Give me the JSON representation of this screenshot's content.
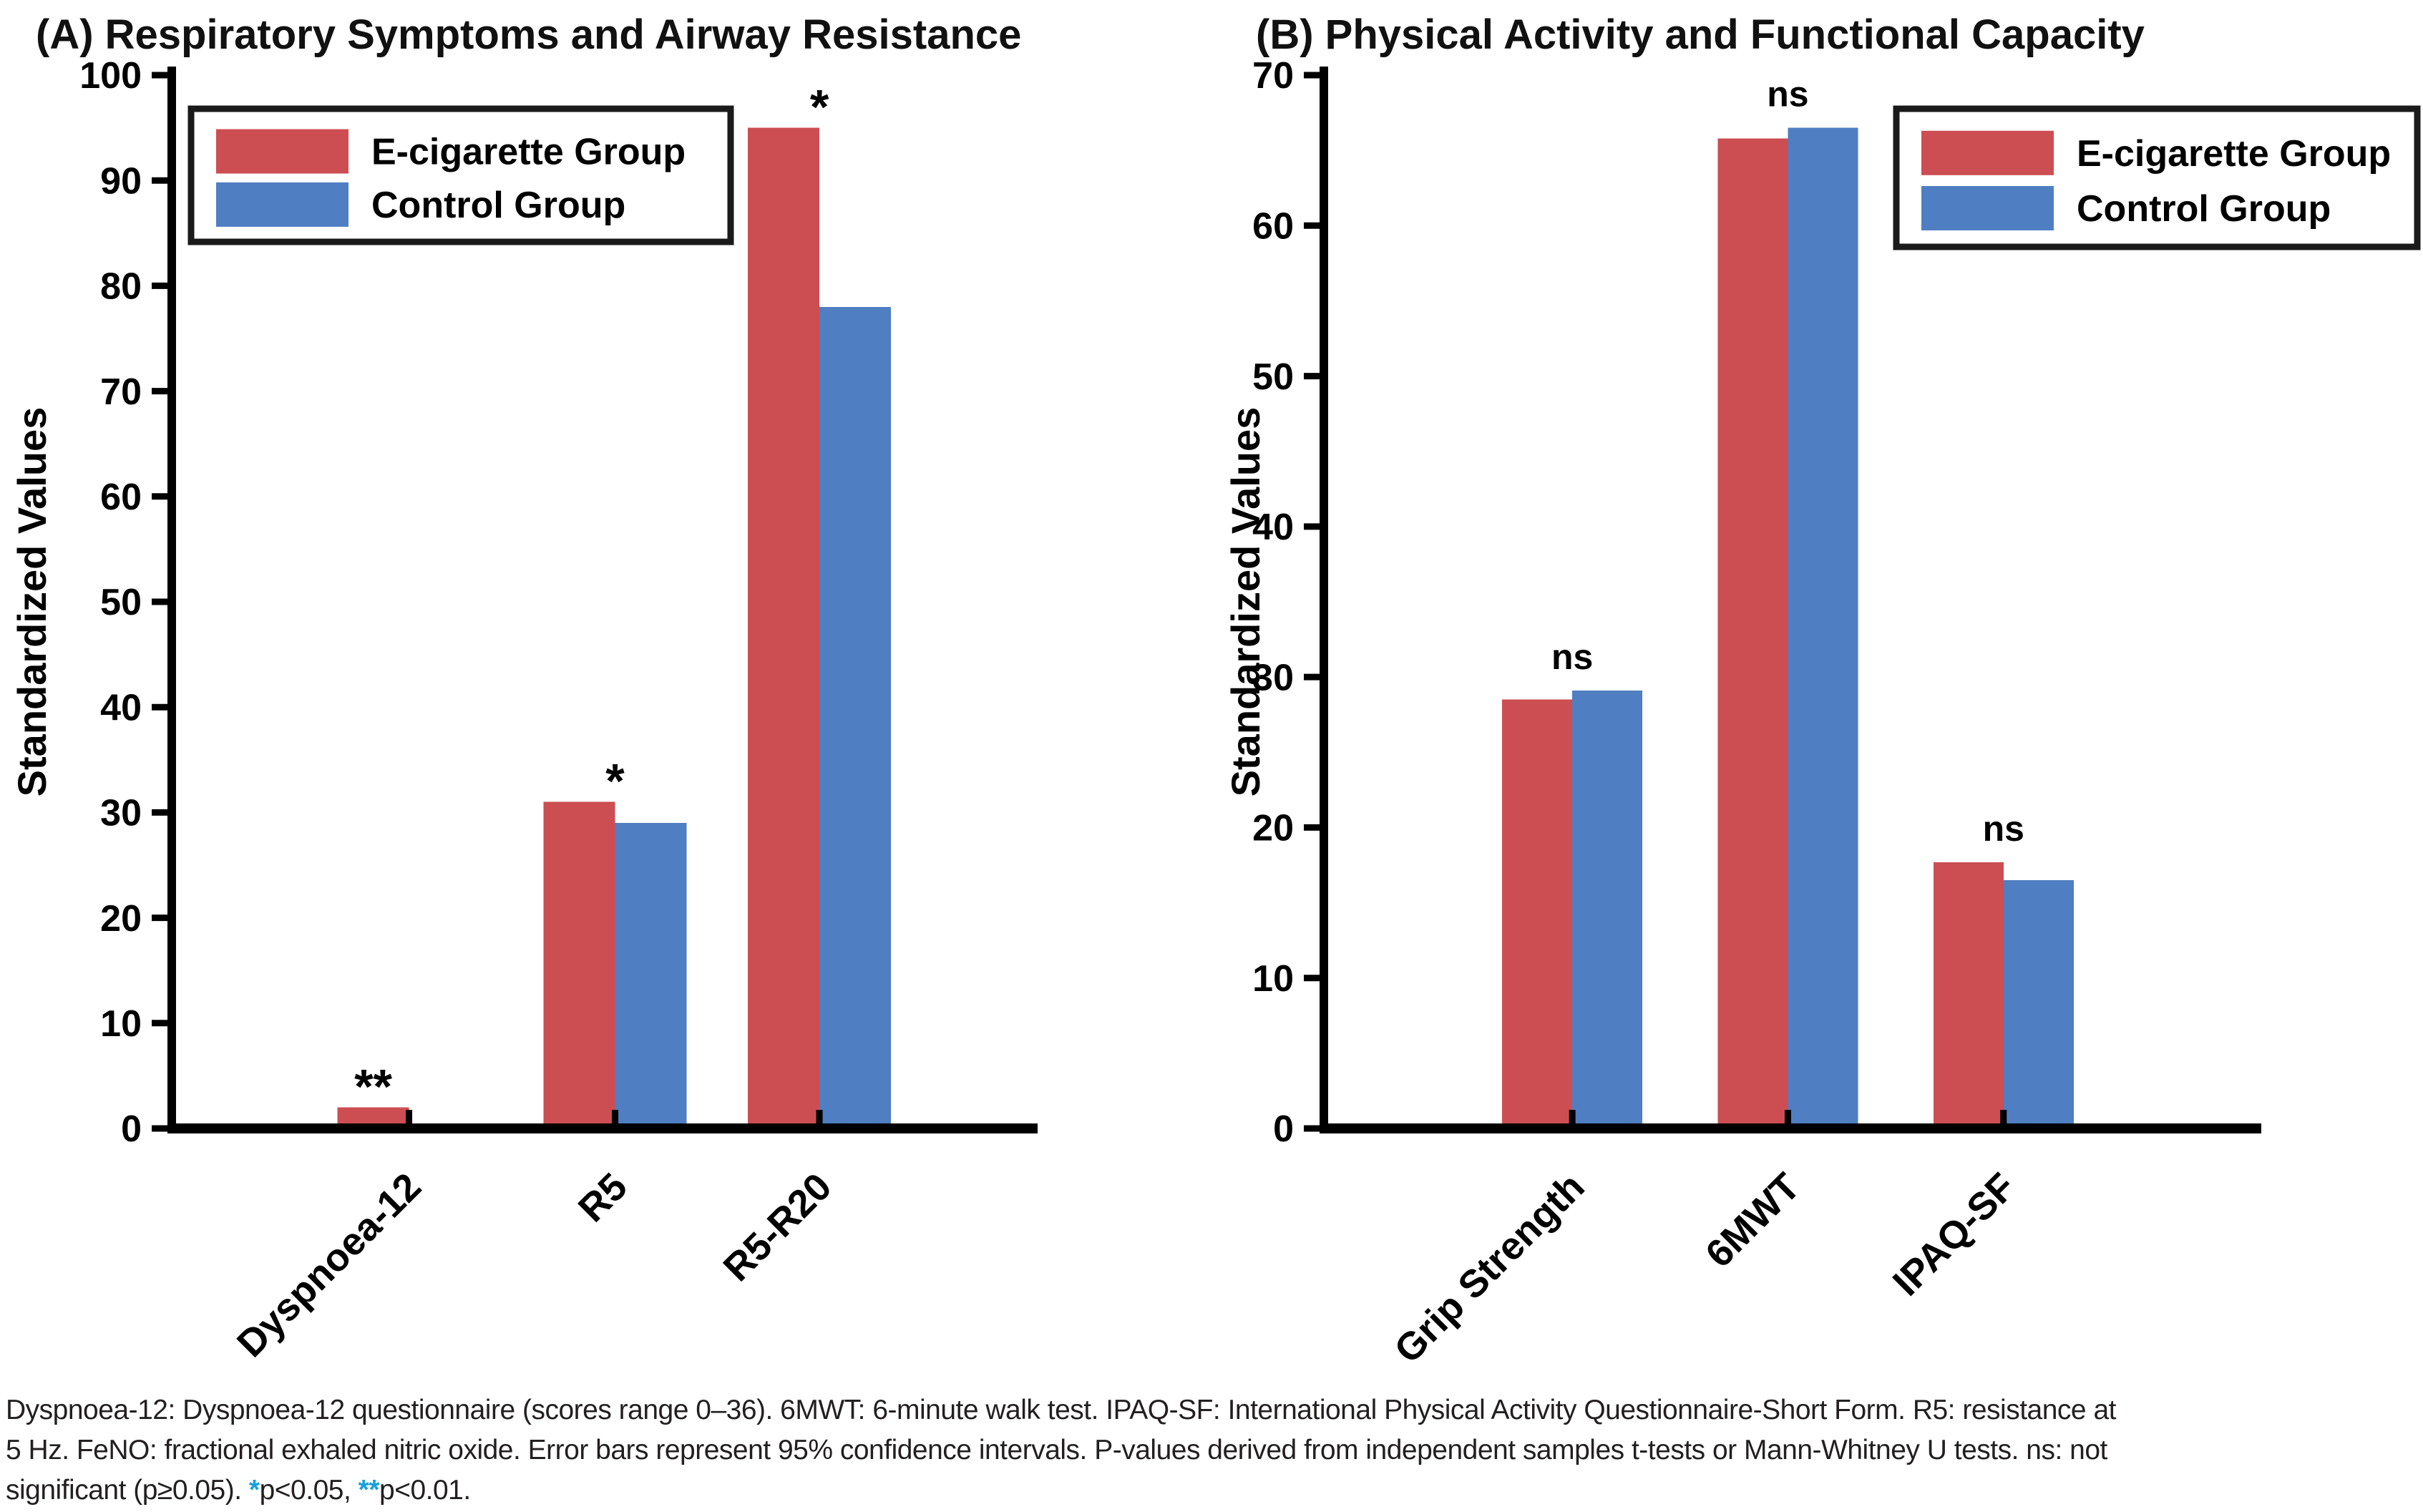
{
  "chart_data": [
    {
      "type": "bar",
      "panel": "A",
      "title": "(A) Respiratory Symptoms and Airway Resistance",
      "ylabel": "Standardized Values",
      "xlabel": "",
      "ylim": [
        0,
        100
      ],
      "ytick_step": 10,
      "grid": false,
      "legend_position": "upper-left",
      "categories": [
        "Dyspnoea-12",
        "R5",
        "R5-R20"
      ],
      "series": [
        {
          "name": "E-cigarette Group",
          "color": "#CC4E52",
          "values": [
            2,
            31,
            95
          ]
        },
        {
          "name": "Control Group",
          "color": "#4F7EC2",
          "values": [
            0,
            29,
            78
          ]
        }
      ],
      "significance": [
        "**",
        "*",
        "*"
      ]
    },
    {
      "type": "bar",
      "panel": "B",
      "title": "(B) Physical Activity and Functional Capacity",
      "ylabel": "Standardized Values",
      "xlabel": "",
      "ylim": [
        0,
        70
      ],
      "ytick_step": 10,
      "grid": false,
      "legend_position": "upper-right",
      "categories": [
        "Grip Strength",
        "6MWT",
        "IPAQ-SF"
      ],
      "series": [
        {
          "name": "E-cigarette Group",
          "color": "#CC4E52",
          "values": [
            28.5,
            65.8,
            17.7
          ]
        },
        {
          "name": "Control Group",
          "color": "#4F7EC2",
          "values": [
            29.1,
            66.5,
            16.5
          ]
        }
      ],
      "significance": [
        "ns",
        "ns",
        "ns"
      ]
    }
  ],
  "caption": {
    "accent_color": "#18A0DC",
    "line1": "Dyspnoea-12: Dyspnoea-12 questionnaire (scores range 0–36). 6MWT: 6-minute walk test. IPAQ-SF: International Physical Activity Questionnaire-Short Form. R5: resistance at",
    "line2": "5 Hz. FeNO: fractional exhaled nitric oxide. Error bars represent 95% confidence intervals. P-values derived from independent samples t-tests or Mann-Whitney U tests. ns: not",
    "line3_segments": [
      {
        "text": "significant (p≥0.05). ",
        "accent": false
      },
      {
        "text": "*",
        "accent": true
      },
      {
        "text": "p<0.05, ",
        "accent": false
      },
      {
        "text": "**",
        "accent": true
      },
      {
        "text": "p<0.01.",
        "accent": false
      }
    ]
  }
}
